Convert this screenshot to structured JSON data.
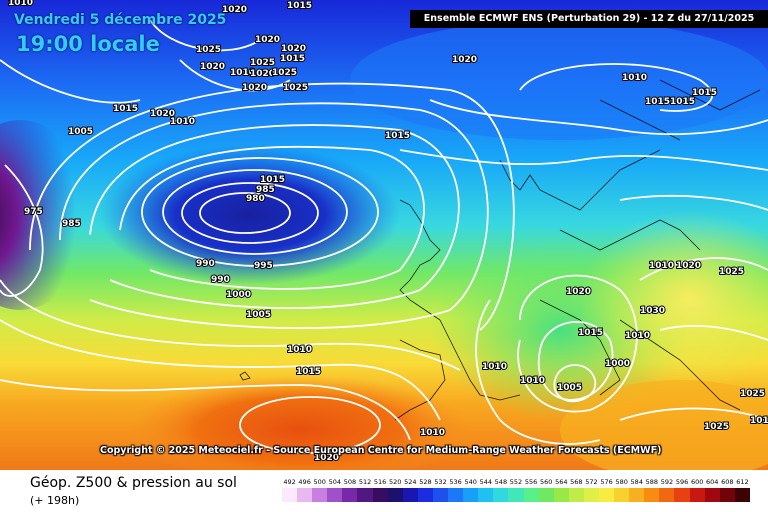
{
  "header": {
    "date": "Vendredi 5 décembre 2025",
    "local_time": "19:00 locale",
    "run_info": "Ensemble ECMWF ENS  (Perturbation 29)  -  12 Z du 27/11/2025"
  },
  "copyright": "Copyright © 2025 Meteociel.fr - Source European Centre for Medium-Range Weather Forecasts (ECMWF)",
  "footer": {
    "product": "Géop. Z500 & pression au sol",
    "lead_time": "(+ 198h)"
  },
  "scale": {
    "labels": [
      "492",
      "496",
      "500",
      "504",
      "508",
      "512",
      "516",
      "520",
      "524",
      "528",
      "532",
      "536",
      "540",
      "544",
      "548",
      "552",
      "556",
      "560",
      "564",
      "568",
      "572",
      "576",
      "580",
      "584",
      "588",
      "592",
      "596",
      "600",
      "604",
      "608",
      "612"
    ],
    "colors": [
      "#fce8ff",
      "#e8b8f0",
      "#c880e0",
      "#a050c8",
      "#7828a8",
      "#501880",
      "#380c60",
      "#1c1070",
      "#1818b0",
      "#1c2ce0",
      "#1e50f0",
      "#1c78f8",
      "#18a0f8",
      "#20c0f0",
      "#30d8e0",
      "#40e8b8",
      "#58f088",
      "#70e860",
      "#98e848",
      "#c0ec48",
      "#e0ee48",
      "#f8ec40",
      "#f8d030",
      "#f8b020",
      "#f88c10",
      "#f06810",
      "#e84010",
      "#c81810",
      "#a00810",
      "#700408",
      "#3c0204"
    ]
  },
  "isobar_labels": [
    "1010",
    "1020",
    "1015",
    "1020",
    "1025",
    "1020",
    "1015",
    "1020",
    "1025",
    "1010",
    "1020",
    "1025",
    "1020",
    "1025",
    "1015",
    "1020",
    "1010",
    "1005",
    "1020",
    "1010",
    "1015",
    "1015",
    "1015",
    "1015",
    "1015",
    "985",
    "980",
    "975",
    "985",
    "990",
    "995",
    "990",
    "1000",
    "1005",
    "1010",
    "1015",
    "1020",
    "1010",
    "1020",
    "1025",
    "1030",
    "1015",
    "1010",
    "1010",
    "1010",
    "1005",
    "1000",
    "1010",
    "1025",
    "1020",
    "1025",
    "1015",
    "1025"
  ]
}
